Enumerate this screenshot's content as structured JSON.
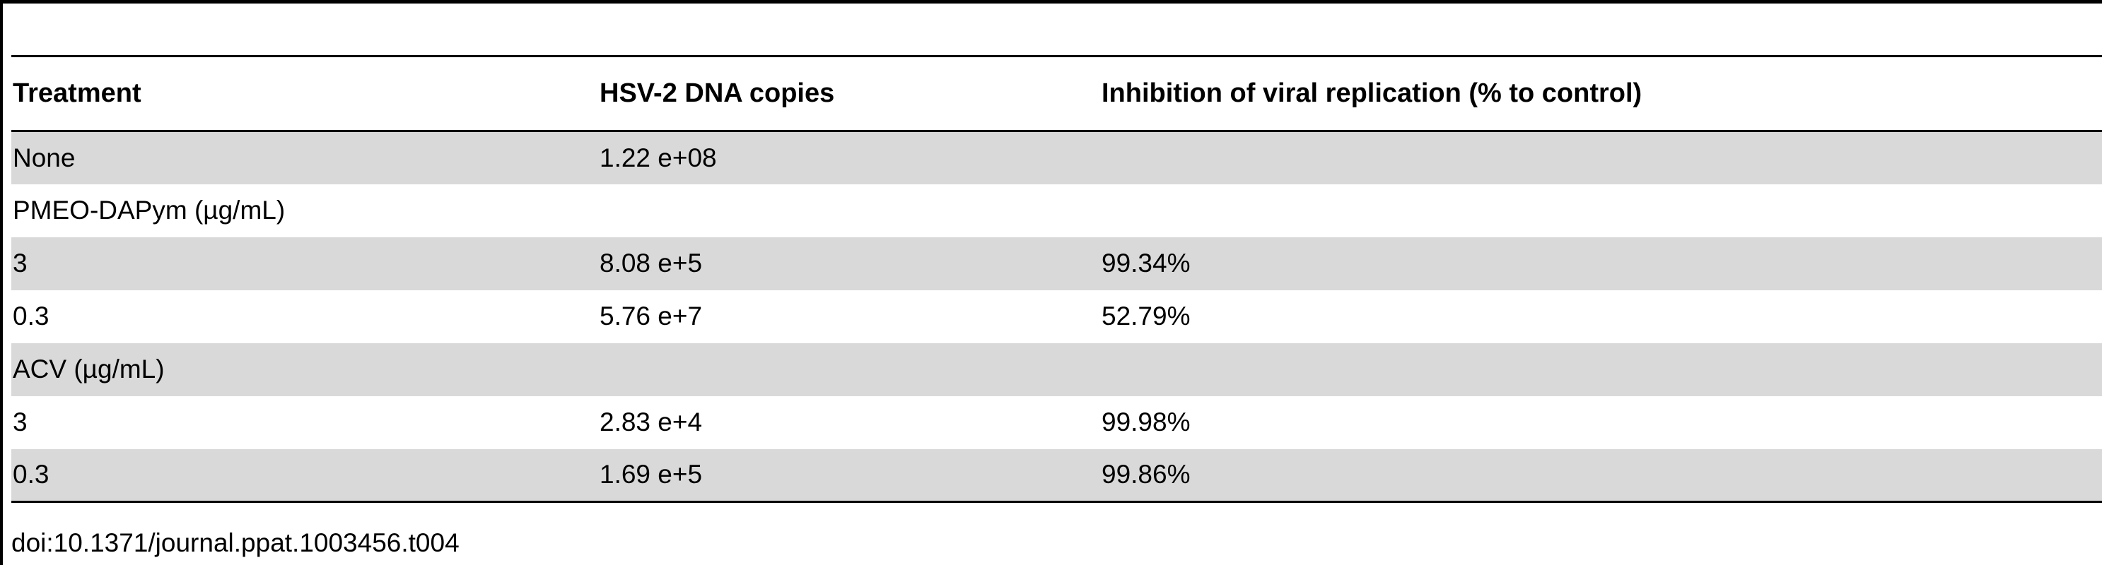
{
  "table": {
    "headers": [
      "Treatment",
      "HSV-2 DNA copies",
      "Inhibition of viral replication (% to control)"
    ],
    "rows": [
      [
        "None",
        "1.22 e+08",
        ""
      ],
      [
        "PMEO-DAPym (µg/mL)",
        "",
        ""
      ],
      [
        "3",
        "8.08 e+5",
        "99.34%"
      ],
      [
        "0.3",
        "5.76 e+7",
        "52.79%"
      ],
      [
        "ACV (µg/mL)",
        "",
        ""
      ],
      [
        "3",
        "2.83 e+4",
        "99.98%"
      ],
      [
        "0.3",
        "1.69 e+5",
        "99.86%"
      ]
    ]
  },
  "caption": "doi:10.1371/journal.ppat.1003456.t004",
  "colors": {
    "row_shade": "#d9d9d9",
    "rule": "#000000"
  }
}
